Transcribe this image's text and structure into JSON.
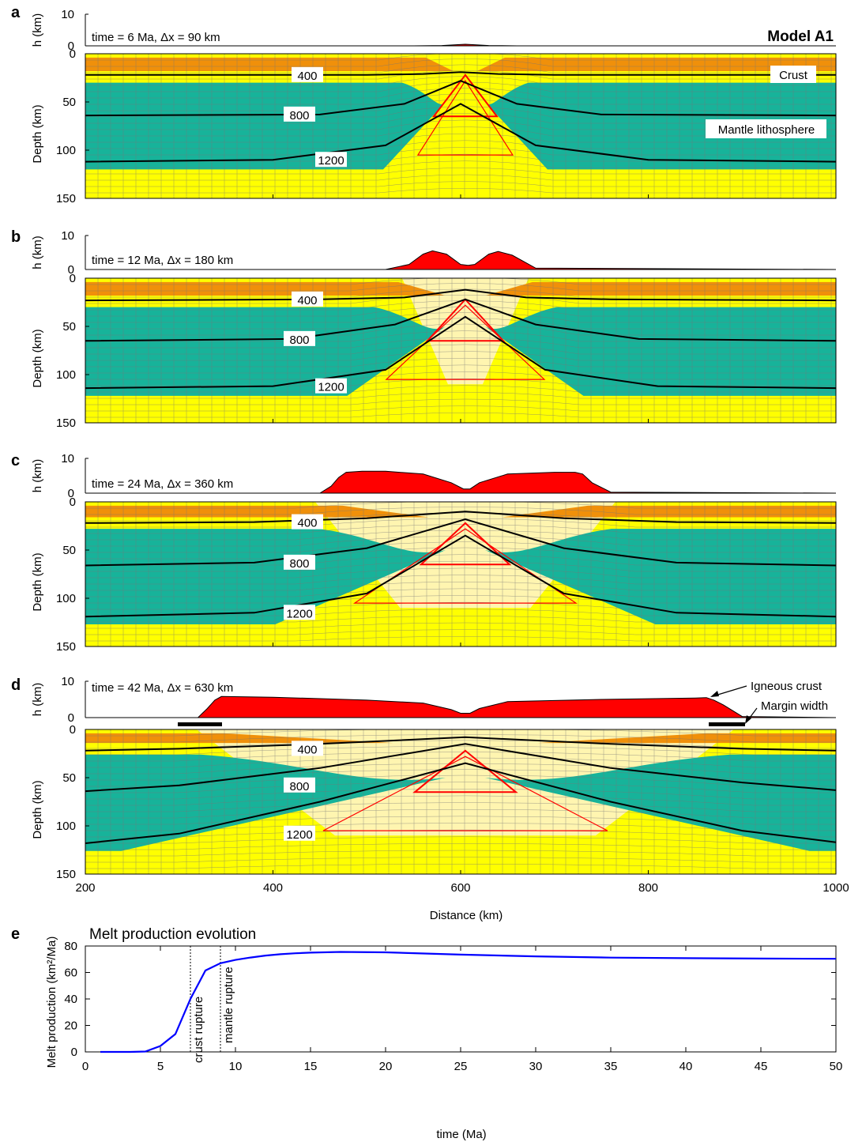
{
  "figure": {
    "model_label": "Model A1",
    "crust_label": "Crust",
    "mantle_label": "Mantle lithosphere",
    "igneous_label": "Igneous crust",
    "margin_label": "Margin width",
    "h_axis_label": "h (km)",
    "depth_axis_label": "Depth (km)",
    "distance_axis_label": "Distance (km)",
    "h_ticks": [
      "10",
      "0"
    ],
    "depth_ticks": [
      "0",
      "50",
      "100",
      "150"
    ],
    "distance_ticks": [
      "200",
      "400",
      "600",
      "800",
      "1000"
    ]
  },
  "panels": [
    {
      "letter": "a",
      "time_text": "time = 6 Ma, Δx = 90 km",
      "isotherms": [
        "400",
        "800",
        "1200"
      ]
    },
    {
      "letter": "b",
      "time_text": "time = 12 Ma, Δx = 180 km",
      "isotherms": [
        "400",
        "800",
        "1200"
      ]
    },
    {
      "letter": "c",
      "time_text": "time = 24 Ma, Δx = 360 km",
      "isotherms": [
        "400",
        "800",
        "1200"
      ]
    },
    {
      "letter": "d",
      "time_text": "time = 42 Ma, Δx = 630 km",
      "isotherms": [
        "400",
        "800",
        "1200"
      ]
    }
  ],
  "panel_e": {
    "letter": "e",
    "title": "Melt production evolution",
    "ylabel": "Melt production (km²/Ma)",
    "xlabel": "time (Ma)",
    "x_ticks": [
      "0",
      "5",
      "10",
      "15",
      "20",
      "25",
      "30",
      "35",
      "40",
      "45",
      "50"
    ],
    "y_ticks": [
      "0",
      "20",
      "40",
      "60",
      "80"
    ],
    "annotations": [
      "crust rupture",
      "mantle rupture"
    ]
  },
  "colors": {
    "crust": "#f0900a",
    "mantle": "#17b39a",
    "asthenosphere": "#ffff00",
    "depleted": "#fff5b0",
    "melt": "#ff0000",
    "isotherm": "#000000",
    "melt_line": "#0000ff"
  },
  "chart_data": [
    {
      "type": "line",
      "panel": "a",
      "title": "time = 6 Ma, Δx = 90 km",
      "xlabel": "",
      "ylabel": "h (km)",
      "xlim": [
        200,
        1000
      ],
      "ylim": [
        0,
        10
      ],
      "series": [
        {
          "name": "",
          "x": [
            200,
            550,
            580,
            595,
            605,
            615,
            630,
            660,
            1000
          ],
          "y": [
            0,
            0,
            0.1,
            0.35,
            0.5,
            0.35,
            0.1,
            0,
            0
          ]
        }
      ]
    },
    {
      "type": "line",
      "panel": "a",
      "xlabel": "",
      "ylabel": "Depth (km)",
      "xlim": [
        200,
        1000
      ],
      "ylim": [
        150,
        0
      ],
      "series": [
        {
          "name": "400",
          "x": [
            200,
            500,
            560,
            600,
            640,
            700,
            1000
          ],
          "y": [
            22,
            22,
            21,
            19,
            21,
            22,
            22
          ]
        },
        {
          "name": "800",
          "x": [
            200,
            450,
            540,
            600,
            660,
            750,
            1000
          ],
          "y": [
            64,
            63,
            52,
            28,
            52,
            63,
            64
          ]
        },
        {
          "name": "1200",
          "x": [
            200,
            400,
            520,
            600,
            680,
            800,
            1000
          ],
          "y": [
            112,
            110,
            95,
            52,
            95,
            110,
            112
          ]
        }
      ]
    },
    {
      "type": "line",
      "panel": "b",
      "title": "time = 12 Ma, Δx = 180 km",
      "xlabel": "",
      "ylabel": "h (km)",
      "xlim": [
        200,
        1000
      ],
      "ylim": [
        0,
        10
      ],
      "series": [
        {
          "name": "",
          "x": [
            200,
            520,
            545,
            560,
            570,
            585,
            600,
            608,
            615,
            630,
            640,
            655,
            680,
            1000
          ],
          "y": [
            0,
            0,
            1.5,
            4.5,
            5.5,
            4.5,
            1.5,
            1.2,
            1.5,
            4.5,
            5.3,
            4.2,
            0.4,
            0
          ]
        }
      ]
    },
    {
      "type": "line",
      "panel": "b",
      "xlabel": "",
      "ylabel": "Depth (km)",
      "xlim": [
        200,
        1000
      ],
      "ylim": [
        150,
        0
      ],
      "series": [
        {
          "name": "400",
          "x": [
            200,
            450,
            540,
            605,
            670,
            760,
            1000
          ],
          "y": [
            23,
            22,
            20,
            12,
            20,
            22,
            23
          ]
        },
        {
          "name": "800",
          "x": [
            200,
            420,
            530,
            605,
            680,
            790,
            1000
          ],
          "y": [
            65,
            63,
            48,
            22,
            48,
            63,
            65
          ]
        },
        {
          "name": "1200",
          "x": [
            200,
            400,
            520,
            605,
            690,
            810,
            1000
          ],
          "y": [
            114,
            112,
            95,
            40,
            95,
            112,
            114
          ]
        }
      ]
    },
    {
      "type": "line",
      "panel": "c",
      "title": "time = 24 Ma, Δx = 360 km",
      "xlabel": "",
      "ylabel": "h (km)",
      "xlim": [
        200,
        1000
      ],
      "ylim": [
        0,
        10
      ],
      "series": [
        {
          "name": "",
          "x": [
            200,
            450,
            462,
            470,
            478,
            495,
            520,
            560,
            590,
            603,
            610,
            620,
            650,
            700,
            722,
            730,
            740,
            760,
            1000
          ],
          "y": [
            0,
            0,
            2,
            4.5,
            6,
            6.3,
            6.3,
            5.5,
            3,
            1.2,
            1.2,
            3,
            5.5,
            6,
            6,
            5.5,
            3,
            0.3,
            0
          ]
        }
      ]
    },
    {
      "type": "line",
      "panel": "c",
      "xlabel": "",
      "ylabel": "Depth (km)",
      "xlim": [
        200,
        1000
      ],
      "ylim": [
        150,
        0
      ],
      "series": [
        {
          "name": "400",
          "x": [
            200,
            380,
            500,
            605,
            710,
            830,
            1000
          ],
          "y": [
            22,
            21,
            17,
            10,
            17,
            21,
            22
          ]
        },
        {
          "name": "800",
          "x": [
            200,
            380,
            500,
            605,
            710,
            830,
            1000
          ],
          "y": [
            66,
            63,
            48,
            18,
            48,
            63,
            66
          ]
        },
        {
          "name": "1200",
          "x": [
            200,
            380,
            500,
            605,
            710,
            830,
            1000
          ],
          "y": [
            119,
            115,
            95,
            35,
            95,
            115,
            119
          ]
        }
      ]
    },
    {
      "type": "line",
      "panel": "d",
      "title": "time = 42 Ma, Δx = 630 km",
      "xlabel": "Distance (km)",
      "ylabel": "h (km)",
      "xlim": [
        200,
        1000
      ],
      "ylim": [
        0,
        10
      ],
      "series": [
        {
          "name": "",
          "x": [
            200,
            320,
            330,
            338,
            345,
            400,
            500,
            560,
            590,
            600,
            610,
            620,
            650,
            750,
            850,
            862,
            870,
            880,
            900,
            1000
          ],
          "y": [
            0,
            0,
            2.5,
            4.8,
            5.8,
            5.6,
            4.8,
            4,
            2.2,
            1.2,
            1.2,
            2.5,
            4.4,
            5,
            5.4,
            5.5,
            4.8,
            3.5,
            0.3,
            0
          ]
        }
      ]
    },
    {
      "type": "line",
      "panel": "d",
      "xlabel": "Distance (km)",
      "ylabel": "Depth (km)",
      "xlim": [
        200,
        1000
      ],
      "ylim": [
        150,
        0
      ],
      "series": [
        {
          "name": "400",
          "x": [
            200,
            300,
            450,
            605,
            760,
            900,
            1000
          ],
          "y": [
            22,
            20,
            15,
            8,
            15,
            20,
            22
          ]
        },
        {
          "name": "800",
          "x": [
            200,
            300,
            450,
            605,
            760,
            900,
            1000
          ],
          "y": [
            64,
            58,
            40,
            15,
            40,
            55,
            63
          ]
        },
        {
          "name": "1200",
          "x": [
            200,
            300,
            450,
            605,
            760,
            900,
            1000
          ],
          "y": [
            118,
            108,
            75,
            35,
            75,
            105,
            117
          ]
        }
      ]
    },
    {
      "type": "line",
      "panel": "e",
      "title": "Melt production evolution",
      "xlabel": "time (Ma)",
      "ylabel": "Melt production (km²/Ma)",
      "xlim": [
        0,
        50
      ],
      "ylim": [
        0,
        80
      ],
      "grid": false,
      "series": [
        {
          "name": "",
          "x": [
            1,
            2,
            3,
            4,
            5,
            6,
            7,
            8,
            9,
            10,
            11,
            12,
            13,
            14,
            15,
            17,
            20,
            25,
            30,
            35,
            40,
            45,
            50
          ],
          "y": [
            0,
            0,
            0,
            0.3,
            4.5,
            13.5,
            40,
            61.5,
            67,
            69.5,
            71.3,
            72.8,
            73.8,
            74.5,
            75,
            75.5,
            75.2,
            73.5,
            72.2,
            71.2,
            70.8,
            70.5,
            70.3
          ]
        }
      ],
      "vlines": [
        {
          "x": 7,
          "label": "crust rupture"
        },
        {
          "x": 9,
          "label": "mantle rupture"
        }
      ]
    }
  ]
}
